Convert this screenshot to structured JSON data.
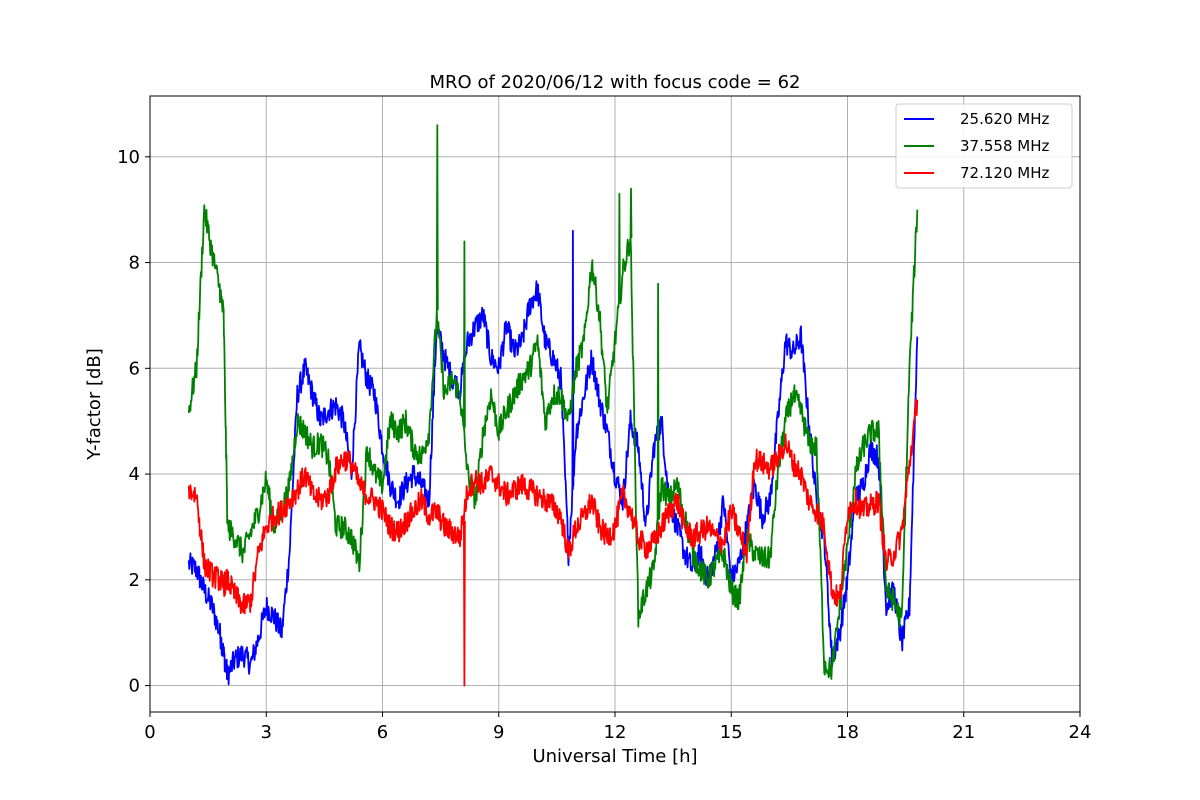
{
  "chart_data": {
    "type": "line",
    "title": "MRO of 2020/06/12 with focus code = 62",
    "xlabel": "Universal Time [h]",
    "ylabel": "Y-factor [dB]",
    "xlim": [
      0,
      24
    ],
    "ylim": [
      -0.5,
      11.15
    ],
    "xticks": [
      0,
      3,
      6,
      9,
      12,
      15,
      18,
      21,
      24
    ],
    "yticks": [
      0,
      2,
      4,
      6,
      8,
      10
    ],
    "grid": true,
    "legend_position": "top-right",
    "series": [
      {
        "name": "25.620 MHz",
        "color": "#0000ff",
        "x": [
          1.0,
          1.2,
          1.4,
          1.6,
          1.8,
          1.9,
          2.0,
          2.2,
          2.4,
          2.6,
          2.8,
          3.0,
          3.2,
          3.4,
          3.6,
          3.8,
          4.0,
          4.2,
          4.4,
          4.6,
          4.8,
          5.0,
          5.2,
          5.4,
          5.6,
          5.8,
          6.0,
          6.2,
          6.4,
          6.6,
          6.8,
          7.0,
          7.2,
          7.4,
          7.6,
          7.8,
          8.0,
          8.2,
          8.4,
          8.6,
          8.8,
          9.0,
          9.2,
          9.4,
          9.6,
          9.8,
          10.0,
          10.2,
          10.4,
          10.6,
          10.8,
          11.0,
          11.2,
          11.4,
          11.6,
          11.8,
          12.0,
          12.2,
          12.4,
          12.6,
          12.8,
          13.0,
          13.2,
          13.4,
          13.6,
          13.8,
          14.0,
          14.2,
          14.4,
          14.6,
          14.8,
          15.0,
          15.2,
          15.4,
          15.6,
          15.8,
          16.0,
          16.2,
          16.4,
          16.6,
          16.8,
          17.0,
          17.2,
          17.4,
          17.6,
          17.8,
          18.0,
          18.2,
          18.4,
          18.6,
          18.8,
          19.0,
          19.2,
          19.4,
          19.6,
          19.8
        ],
        "y": [
          2.3,
          2.2,
          1.8,
          1.5,
          1.0,
          0.6,
          0.2,
          0.5,
          0.6,
          0.4,
          0.9,
          1.5,
          1.3,
          1.0,
          2.5,
          5.5,
          6.0,
          5.5,
          5.0,
          5.2,
          5.3,
          5.0,
          4.0,
          6.4,
          5.8,
          5.5,
          4.5,
          3.8,
          3.5,
          3.8,
          4.0,
          3.8,
          3.5,
          6.8,
          6.2,
          5.8,
          5.6,
          6.5,
          6.8,
          7.0,
          6.2,
          6.0,
          6.8,
          6.3,
          6.5,
          7.2,
          7.5,
          6.5,
          6.2,
          5.8,
          2.5,
          4.8,
          5.5,
          6.2,
          5.4,
          4.8,
          4.0,
          3.5,
          5.0,
          4.5,
          3.0,
          4.5,
          5.0,
          3.5,
          3.0,
          2.5,
          2.2,
          2.5,
          2.0,
          2.5,
          3.5,
          2.0,
          2.3,
          3.0,
          3.8,
          3.2,
          3.5,
          5.0,
          6.5,
          6.3,
          6.6,
          5.0,
          3.5,
          2.8,
          0.5,
          1.0,
          2.0,
          3.5,
          3.8,
          4.5,
          4.3,
          1.5,
          1.8,
          0.8,
          1.5,
          6.6
        ]
      },
      {
        "name": "37.558 MHz",
        "color": "#008000",
        "x": [
          1.0,
          1.2,
          1.4,
          1.6,
          1.8,
          1.9,
          2.0,
          2.2,
          2.4,
          2.6,
          2.8,
          3.0,
          3.2,
          3.4,
          3.6,
          3.8,
          4.0,
          4.2,
          4.4,
          4.6,
          4.8,
          5.0,
          5.2,
          5.4,
          5.6,
          5.8,
          6.0,
          6.2,
          6.4,
          6.6,
          6.8,
          7.0,
          7.2,
          7.4,
          7.6,
          7.8,
          8.0,
          8.2,
          8.4,
          8.6,
          8.8,
          9.0,
          9.2,
          9.4,
          9.6,
          9.8,
          10.0,
          10.2,
          10.4,
          10.6,
          10.8,
          11.0,
          11.2,
          11.4,
          11.6,
          11.8,
          12.0,
          12.2,
          12.4,
          12.6,
          12.8,
          13.0,
          13.2,
          13.4,
          13.6,
          13.8,
          14.0,
          14.2,
          14.4,
          14.6,
          14.8,
          15.0,
          15.2,
          15.4,
          15.6,
          15.8,
          16.0,
          16.2,
          16.4,
          16.6,
          16.8,
          17.0,
          17.2,
          17.4,
          17.6,
          17.8,
          18.0,
          18.2,
          18.4,
          18.6,
          18.8,
          19.0,
          19.2,
          19.4,
          19.6,
          19.8
        ],
        "y": [
          5.2,
          6.0,
          9.0,
          8.2,
          7.5,
          7.0,
          3.0,
          2.8,
          2.5,
          2.9,
          3.3,
          3.9,
          3.0,
          3.3,
          3.8,
          5.0,
          4.8,
          4.5,
          4.6,
          4.3,
          3.0,
          3.0,
          2.8,
          2.3,
          4.5,
          4.0,
          3.8,
          5.0,
          4.8,
          5.0,
          4.5,
          4.3,
          4.8,
          7.0,
          5.5,
          5.8,
          5.5,
          4.0,
          3.5,
          4.8,
          5.5,
          4.8,
          5.2,
          5.5,
          5.8,
          6.0,
          6.5,
          5.0,
          5.5,
          5.5,
          5.0,
          6.0,
          6.5,
          8.0,
          7.0,
          5.2,
          6.5,
          7.8,
          8.5,
          1.3,
          1.8,
          2.2,
          3.8,
          3.5,
          3.8,
          3.2,
          2.5,
          2.2,
          2.0,
          2.3,
          2.5,
          1.8,
          1.6,
          2.8,
          2.5,
          2.4,
          2.4,
          4.0,
          5.0,
          5.5,
          5.2,
          4.6,
          4.5,
          0.4,
          0.3,
          1.5,
          2.6,
          4.0,
          4.5,
          4.8,
          4.8,
          1.8,
          1.6,
          1.2,
          6.0,
          9.0
        ]
      },
      {
        "name": "72.120 MHz",
        "color": "#ff0000",
        "x": [
          1.0,
          1.2,
          1.4,
          1.6,
          1.8,
          1.9,
          2.0,
          2.2,
          2.4,
          2.6,
          2.8,
          3.0,
          3.2,
          3.4,
          3.6,
          3.8,
          4.0,
          4.2,
          4.4,
          4.6,
          4.8,
          5.0,
          5.2,
          5.4,
          5.6,
          5.8,
          6.0,
          6.2,
          6.4,
          6.6,
          6.8,
          7.0,
          7.2,
          7.4,
          7.6,
          7.8,
          8.0,
          8.2,
          8.4,
          8.6,
          8.8,
          9.0,
          9.2,
          9.4,
          9.6,
          9.8,
          10.0,
          10.2,
          10.4,
          10.6,
          10.8,
          11.0,
          11.2,
          11.4,
          11.6,
          11.8,
          12.0,
          12.2,
          12.4,
          12.6,
          12.8,
          13.0,
          13.2,
          13.4,
          13.6,
          13.8,
          14.0,
          14.2,
          14.4,
          14.6,
          14.8,
          15.0,
          15.2,
          15.4,
          15.6,
          15.8,
          16.0,
          16.2,
          16.4,
          16.6,
          16.8,
          17.0,
          17.2,
          17.4,
          17.6,
          17.8,
          18.0,
          18.2,
          18.4,
          18.6,
          18.8,
          19.0,
          19.2,
          19.4,
          19.6,
          19.8
        ],
        "y": [
          3.7,
          3.6,
          2.3,
          2.1,
          2.0,
          1.9,
          2.0,
          1.7,
          1.5,
          1.6,
          2.5,
          3.0,
          3.2,
          3.3,
          3.5,
          3.7,
          4.0,
          3.6,
          3.5,
          3.6,
          4.1,
          4.3,
          4.2,
          3.8,
          3.6,
          3.5,
          3.3,
          3.0,
          2.9,
          3.1,
          3.3,
          3.5,
          3.2,
          3.3,
          3.0,
          2.9,
          2.8,
          3.7,
          3.9,
          3.8,
          4.0,
          3.8,
          3.6,
          3.7,
          3.8,
          3.7,
          3.6,
          3.5,
          3.4,
          3.2,
          2.5,
          3.0,
          3.2,
          3.5,
          3.0,
          2.8,
          3.0,
          3.6,
          3.3,
          2.8,
          2.6,
          2.7,
          3.0,
          3.3,
          3.5,
          3.0,
          2.8,
          2.9,
          3.0,
          2.8,
          2.7,
          3.3,
          2.9,
          2.5,
          4.3,
          4.2,
          4.1,
          4.3,
          4.6,
          4.2,
          4.0,
          3.5,
          3.3,
          3.0,
          1.8,
          1.6,
          3.3,
          3.5,
          3.3,
          3.4,
          3.5,
          2.3,
          2.5,
          2.9,
          4.2,
          5.4
        ]
      }
    ],
    "annotations_spikes": [
      {
        "series": "37.558 MHz",
        "x": 7.4,
        "y": 10.6
      },
      {
        "series": "37.558 MHz",
        "x": 8.1,
        "y": 8.4
      },
      {
        "series": "72.120 MHz",
        "x": 8.1,
        "y": 0.0
      },
      {
        "series": "25.620 MHz",
        "x": 10.9,
        "y": 8.6
      },
      {
        "series": "37.558 MHz",
        "x": 12.1,
        "y": 9.3
      },
      {
        "series": "37.558 MHz",
        "x": 12.4,
        "y": 9.4
      },
      {
        "series": "37.558 MHz",
        "x": 13.1,
        "y": 7.6
      }
    ]
  }
}
